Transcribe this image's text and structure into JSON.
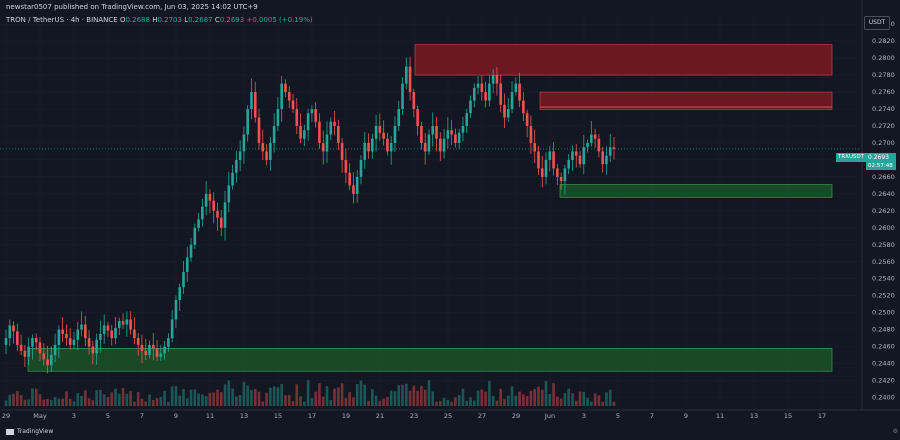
{
  "header": {
    "publisher_line": "newstar0507 published on TradingView.com, Jun 03, 2025 14:02 UTC+9",
    "symbol_line": "TRON / TetherUS · 4h · BINANCE",
    "o_label": "O",
    "o_value": "0.2688",
    "h_label": "H",
    "h_value": "0.2703",
    "l_label": "L",
    "l_value": "0.2687",
    "c_label": "C",
    "c_value": "0.2693",
    "change": "+0.0005 (+0.19%)"
  },
  "price_axis": {
    "currency": "USDT",
    "ticks": [
      "0.2840",
      "0.2820",
      "0.2800",
      "0.2780",
      "0.2760",
      "0.2740",
      "0.2720",
      "0.2700",
      "0.2680",
      "0.2660",
      "0.2640",
      "0.2620",
      "0.2600",
      "0.2580",
      "0.2560",
      "0.2540",
      "0.2520",
      "0.2500",
      "0.2480",
      "0.2460",
      "0.2440",
      "0.2420",
      "0.2400"
    ]
  },
  "last_price": {
    "symbol": "TRXUSDT",
    "value": "0.2693",
    "countdown": "02:57:48"
  },
  "time_axis": {
    "labels": [
      "29",
      "May",
      "3",
      "5",
      "7",
      "9",
      "11",
      "13",
      "15",
      "17",
      "19",
      "21",
      "23",
      "25",
      "27",
      "29",
      "Jun",
      "3",
      "5",
      "7",
      "9",
      "11",
      "13",
      "15",
      "17"
    ]
  },
  "branding": {
    "logo_text": "TradingView",
    "corner_label": "⚙"
  },
  "colors": {
    "background": "#131722",
    "up": "#26a69a",
    "down": "#ef5350",
    "supply_zone": "#8b1a24",
    "demand_zone": "#1c5b2a"
  },
  "chart_data": {
    "type": "candlestick",
    "symbol": "TRXUSDT",
    "interval": "4h",
    "exchange": "BINANCE",
    "ylim": [
      0.239,
      0.2852
    ],
    "x_range_days": [
      "Apr 29",
      "Jun 18"
    ],
    "zones": [
      {
        "kind": "supply",
        "top": 0.2816,
        "bottom": 0.278
      },
      {
        "kind": "supply",
        "top": 0.276,
        "bottom": 0.2743
      },
      {
        "kind": "supply",
        "top": 0.2742,
        "bottom": 0.2741
      },
      {
        "kind": "demand",
        "top": 0.2651,
        "bottom": 0.2636
      },
      {
        "kind": "demand",
        "top": 0.2458,
        "bottom": 0.2431
      }
    ],
    "closes": [
      0.247,
      0.2485,
      0.2478,
      0.2462,
      0.2455,
      0.2448,
      0.246,
      0.247,
      0.2465,
      0.2452,
      0.2445,
      0.2438,
      0.245,
      0.2462,
      0.248,
      0.2475,
      0.247,
      0.2462,
      0.2468,
      0.248,
      0.2486,
      0.247,
      0.246,
      0.2452,
      0.2468,
      0.2475,
      0.2485,
      0.2479,
      0.247,
      0.2482,
      0.249,
      0.2486,
      0.2492,
      0.248,
      0.247,
      0.2462,
      0.2455,
      0.245,
      0.2462,
      0.2458,
      0.2448,
      0.2452,
      0.246,
      0.247,
      0.2492,
      0.2515,
      0.253,
      0.2548,
      0.2565,
      0.258,
      0.26,
      0.261,
      0.2625,
      0.264,
      0.2632,
      0.262,
      0.2612,
      0.26,
      0.263,
      0.265,
      0.2665,
      0.268,
      0.269,
      0.271,
      0.274,
      0.276,
      0.273,
      0.27,
      0.269,
      0.268,
      0.27,
      0.272,
      0.274,
      0.277,
      0.276,
      0.275,
      0.274,
      0.272,
      0.2705,
      0.2715,
      0.2735,
      0.274,
      0.2725,
      0.27,
      0.269,
      0.271,
      0.2725,
      0.272,
      0.27,
      0.268,
      0.2665,
      0.265,
      0.264,
      0.266,
      0.268,
      0.27,
      0.269,
      0.2705,
      0.272,
      0.2712,
      0.2705,
      0.269,
      0.27,
      0.272,
      0.274,
      0.277,
      0.279,
      0.276,
      0.274,
      0.272,
      0.27,
      0.269,
      0.271,
      0.272,
      0.2705,
      0.269,
      0.2705,
      0.2715,
      0.271,
      0.27,
      0.2712,
      0.272,
      0.2735,
      0.275,
      0.2765,
      0.277,
      0.276,
      0.275,
      0.277,
      0.278,
      0.277,
      0.2745,
      0.273,
      0.274,
      0.276,
      0.277,
      0.275,
      0.2735,
      0.272,
      0.27,
      0.269,
      0.267,
      0.266,
      0.268,
      0.269,
      0.267,
      0.266,
      0.2655,
      0.267,
      0.268,
      0.269,
      0.2685,
      0.2675,
      0.2695,
      0.27,
      0.271,
      0.2705,
      0.269,
      0.2675,
      0.2685,
      0.2695,
      0.2693
    ]
  }
}
